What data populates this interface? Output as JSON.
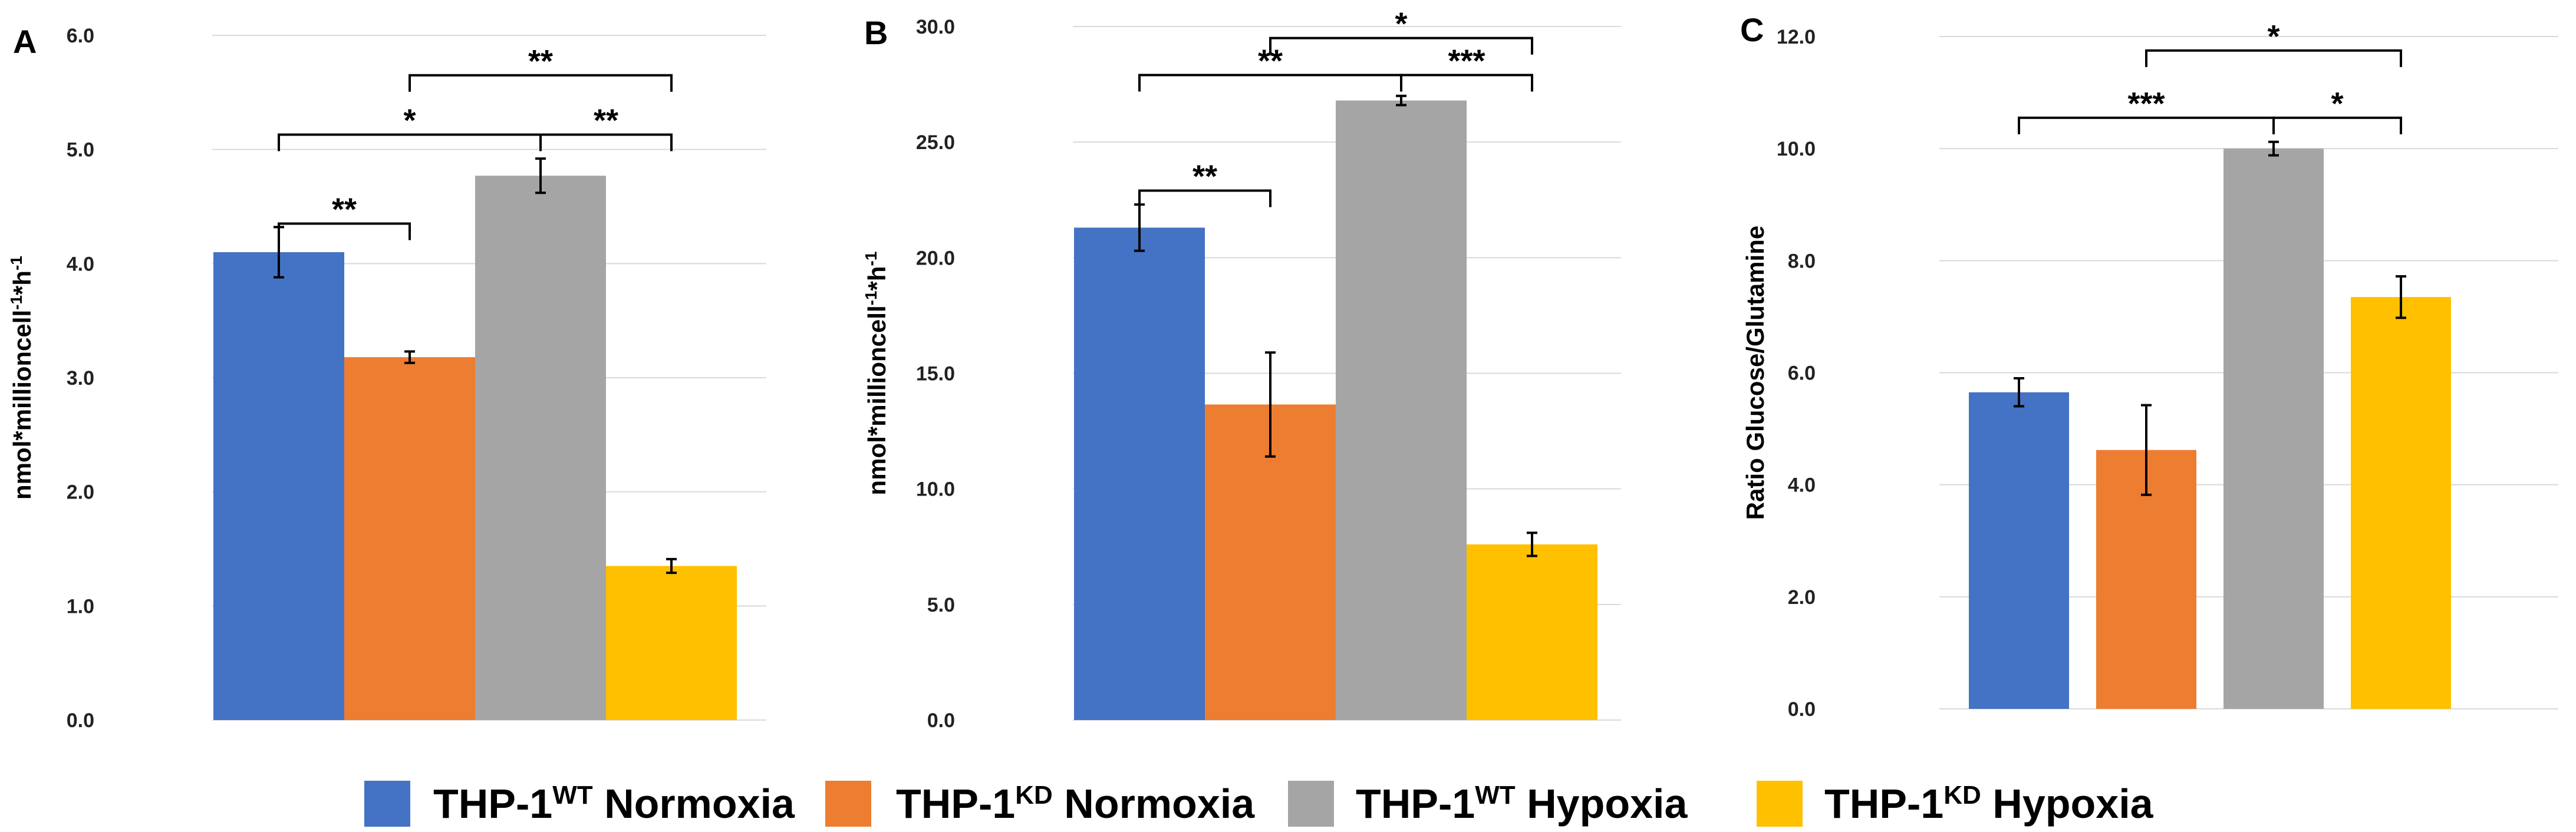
{
  "legend": {
    "items": [
      {
        "prefix": "THP-1",
        "sup": "WT",
        "suffix": " Normoxia",
        "color": "#4472C4"
      },
      {
        "prefix": "THP-1",
        "sup": "KD",
        "suffix": " Normoxia",
        "color": "#ED7D31"
      },
      {
        "prefix": "THP-1",
        "sup": "WT",
        "suffix": " Hypoxia",
        "color": "#A5A5A5"
      },
      {
        "prefix": "THP-1",
        "sup": "KD",
        "suffix": " Hypoxia",
        "color": "#FFC000"
      }
    ]
  },
  "chart_data": [
    {
      "type": "bar",
      "panel_label": "A",
      "ylabel_parts": [
        [
          "nmol*millioncell",
          ""
        ],
        [
          "-1",
          "sup"
        ],
        [
          "*h",
          ""
        ],
        [
          "-1",
          "sup"
        ]
      ],
      "categories": [
        "THP-1 WT Normoxia",
        "THP-1 KD Normoxia",
        "THP-1 WT Hypoxia",
        "THP-1 KD Hypoxia"
      ],
      "values": [
        4.1,
        3.18,
        4.77,
        1.35
      ],
      "errors": [
        0.22,
        0.05,
        0.15,
        0.06
      ],
      "ylim": [
        0,
        6
      ],
      "yticks": [
        "0.0",
        "1.0",
        "2.0",
        "3.0",
        "4.0",
        "5.0",
        "6.0"
      ],
      "grid": true,
      "gap": false,
      "significance": [
        {
          "from": 0,
          "to": 1,
          "label": "**",
          "level": 4.35
        },
        {
          "from": 0,
          "to": 2,
          "label": "*",
          "level": 5.13
        },
        {
          "from": 2,
          "to": 3,
          "label": "**",
          "level": 5.13
        },
        {
          "from": 1,
          "to": 3,
          "label": "**",
          "level": 5.65
        }
      ]
    },
    {
      "type": "bar",
      "panel_label": "B",
      "ylabel_parts": [
        [
          "nmol*millioncell",
          ""
        ],
        [
          "-1",
          "sup"
        ],
        [
          "*h",
          ""
        ],
        [
          "-1",
          "sup"
        ]
      ],
      "categories": [
        "THP-1 WT Normoxia",
        "THP-1 KD Normoxia",
        "THP-1 WT Hypoxia",
        "THP-1 KD Hypoxia"
      ],
      "values": [
        21.3,
        13.65,
        26.8,
        7.6
      ],
      "errors": [
        1.0,
        2.25,
        0.2,
        0.5
      ],
      "ylim": [
        0,
        30
      ],
      "yticks": [
        "0.0",
        "5.0",
        "10.0",
        "15.0",
        "20.0",
        "25.0",
        "30.0"
      ],
      "grid": true,
      "gap": false,
      "significance": [
        {
          "from": 0,
          "to": 1,
          "label": "**",
          "level": 22.9
        },
        {
          "from": 0,
          "to": 2,
          "label": "**",
          "level": 27.9
        },
        {
          "from": 2,
          "to": 3,
          "label": "***",
          "level": 27.9
        },
        {
          "from": 1,
          "to": 3,
          "label": "*",
          "level": 29.5
        }
      ]
    },
    {
      "type": "bar",
      "panel_label": "C",
      "ylabel_parts": [
        [
          "Ratio Glucose/Glutamine",
          ""
        ]
      ],
      "categories": [
        "THP-1 WT Normoxia",
        "THP-1 KD Normoxia",
        "THP-1 WT Hypoxia",
        "THP-1 KD Hypoxia"
      ],
      "values": [
        5.65,
        4.62,
        10.0,
        7.35
      ],
      "errors": [
        0.25,
        0.8,
        0.12,
        0.37
      ],
      "ylim": [
        0,
        12
      ],
      "yticks": [
        "0.0",
        "2.0",
        "4.0",
        "6.0",
        "8.0",
        "10.0",
        "12.0"
      ],
      "grid": true,
      "gap": true,
      "significance": [
        {
          "from": 0,
          "to": 2,
          "label": "***",
          "level": 10.55
        },
        {
          "from": 2,
          "to": 3,
          "label": "*",
          "level": 10.55
        },
        {
          "from": 1,
          "to": 3,
          "label": "*",
          "level": 11.75
        }
      ]
    }
  ]
}
